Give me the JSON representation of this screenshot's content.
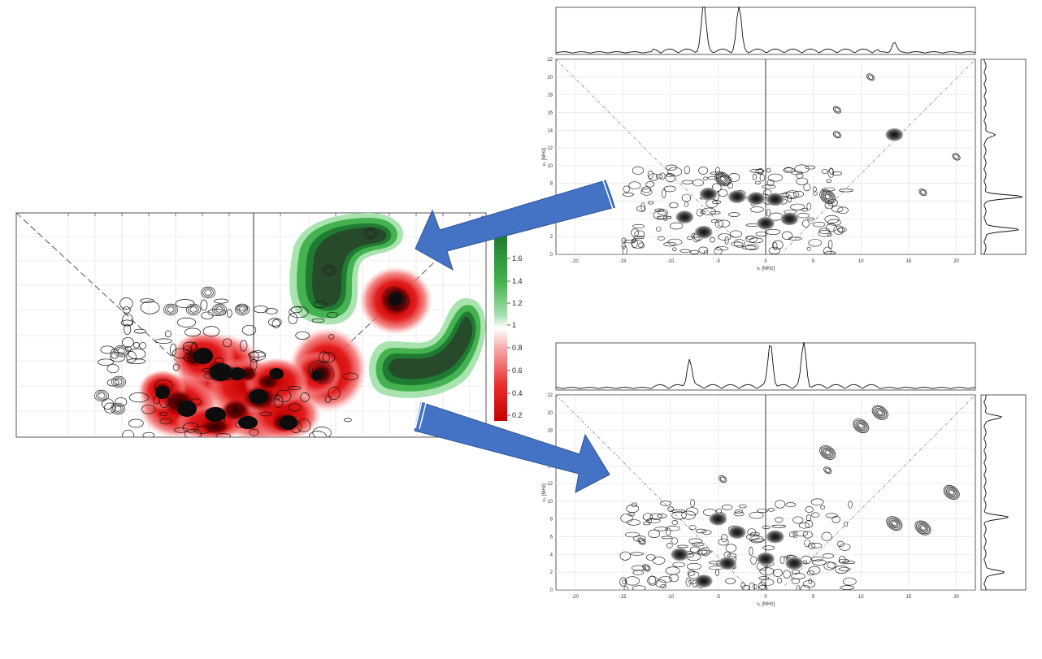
{
  "panels": [
    {
      "id": "top",
      "xlabel": "ν₁ [MHz]",
      "ylabel": "ν₂ [MHz]",
      "x_ticks": [
        -20,
        -15,
        -10,
        -5,
        0,
        5,
        10,
        15,
        20
      ],
      "y_ticks": [
        0,
        2,
        4,
        6,
        8,
        10,
        12,
        14,
        16,
        18,
        20,
        22
      ]
    },
    {
      "id": "bottom",
      "xlabel": "ν₁ [MHz]",
      "ylabel": "ν₂ [MHz]",
      "x_ticks": [
        -20,
        -15,
        -10,
        -5,
        0,
        5,
        10,
        15,
        20
      ],
      "y_ticks": [
        0,
        2,
        4,
        6,
        8,
        10,
        12,
        14,
        16,
        18,
        20,
        22
      ]
    }
  ],
  "colorbar": {
    "ticks": [
      1.6,
      1.4,
      1.2,
      1,
      0.8,
      0.6,
      0.4,
      0.2
    ],
    "colors": {
      "high": "#1e7a2e",
      "mid": "#ffffff",
      "low": "#d40000"
    }
  },
  "arrow_color": "#4472c4",
  "chart_data": [
    {
      "type": "heatmap",
      "title": "",
      "xlabel": "ν₁ [MHz]",
      "ylabel": "ν₂ [MHz]",
      "xlim": [
        -22,
        22
      ],
      "ylim": [
        0,
        22
      ],
      "grid": true,
      "features": [
        {
          "kind": "strong",
          "x": -6.0,
          "y": 6.8
        },
        {
          "kind": "strong",
          "x": -3.0,
          "y": 6.5
        },
        {
          "kind": "strong",
          "x": -1.0,
          "y": 6.3
        },
        {
          "kind": "strong",
          "x": 1.0,
          "y": 6.2
        },
        {
          "kind": "strong",
          "x": -8.5,
          "y": 4.2
        },
        {
          "kind": "strong",
          "x": -6.5,
          "y": 2.5
        },
        {
          "kind": "strong",
          "x": 0.0,
          "y": 3.5
        },
        {
          "kind": "strong",
          "x": 2.5,
          "y": 4.0
        },
        {
          "kind": "strong",
          "x": 13.5,
          "y": 13.5
        },
        {
          "kind": "medium",
          "x": 6.5,
          "y": 6.5
        },
        {
          "kind": "medium",
          "x": -4.5,
          "y": 8.5
        },
        {
          "kind": "weak",
          "x": 11.0,
          "y": 20.0
        },
        {
          "kind": "weak",
          "x": 7.5,
          "y": 16.3
        },
        {
          "kind": "weak",
          "x": 7.5,
          "y": 13.5
        },
        {
          "kind": "weak",
          "x": 20.0,
          "y": 11.0
        },
        {
          "kind": "weak",
          "x": 16.5,
          "y": 7.0
        }
      ],
      "marginal_x": {
        "peaks": [
          {
            "x": -6.5,
            "h": 1.0
          },
          {
            "x": -2.8,
            "h": 0.98
          },
          {
            "x": 13.5,
            "h": 0.22
          }
        ]
      },
      "marginal_y": {
        "peaks": [
          {
            "y": 6.5,
            "h": 0.9
          },
          {
            "y": 2.8,
            "h": 0.85
          },
          {
            "y": 13.5,
            "h": 0.25
          }
        ]
      }
    },
    {
      "type": "heatmap",
      "title": "",
      "xlabel": "ν₁ [MHz]",
      "ylabel": "ν₂ [MHz]",
      "xlim": [
        -22,
        22
      ],
      "ylim": [
        0,
        22
      ],
      "grid": true,
      "features": [
        {
          "kind": "strong",
          "x": -5.0,
          "y": 8.0
        },
        {
          "kind": "strong",
          "x": -3.0,
          "y": 6.5
        },
        {
          "kind": "strong",
          "x": 1.0,
          "y": 6.0
        },
        {
          "kind": "strong",
          "x": -4.0,
          "y": 3.0
        },
        {
          "kind": "strong",
          "x": 0.0,
          "y": 3.5
        },
        {
          "kind": "strong",
          "x": 3.0,
          "y": 3.0
        },
        {
          "kind": "strong",
          "x": -9.0,
          "y": 4.0
        },
        {
          "kind": "strong",
          "x": -6.5,
          "y": 1.0
        },
        {
          "kind": "medium",
          "x": 6.5,
          "y": 15.5
        },
        {
          "kind": "medium",
          "x": 10.0,
          "y": 18.5
        },
        {
          "kind": "medium",
          "x": 13.5,
          "y": 7.5
        },
        {
          "kind": "medium",
          "x": 16.5,
          "y": 7.0
        },
        {
          "kind": "medium",
          "x": 19.5,
          "y": 11.0
        },
        {
          "kind": "medium",
          "x": 12.0,
          "y": 20.0
        },
        {
          "kind": "weak",
          "x": -13.0,
          "y": 5.5
        },
        {
          "kind": "weak",
          "x": -12.5,
          "y": 2.5
        },
        {
          "kind": "weak",
          "x": -4.5,
          "y": 12.5
        },
        {
          "kind": "weak",
          "x": 6.5,
          "y": 13.5
        }
      ],
      "marginal_x": {
        "peaks": [
          {
            "x": 0.5,
            "h": 0.95
          },
          {
            "x": 4.0,
            "h": 0.95
          },
          {
            "x": -8.0,
            "h": 0.6
          }
        ]
      },
      "marginal_y": {
        "peaks": [
          {
            "y": 8.2,
            "h": 0.55
          },
          {
            "y": 2.0,
            "h": 0.5
          },
          {
            "y": 19.5,
            "h": 0.4
          }
        ]
      }
    }
  ]
}
